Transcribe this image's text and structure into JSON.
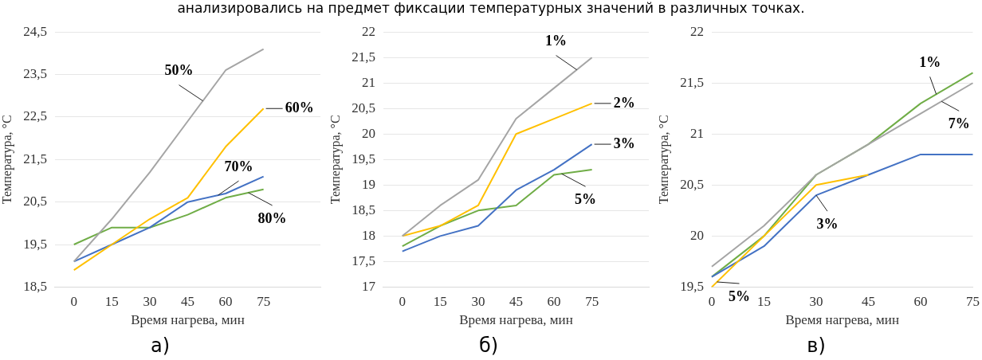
{
  "chart_data": [
    {
      "type": "line",
      "title": "а)",
      "xlabel": "Время нагрева, мин",
      "ylabel": "Температура, °С",
      "annotations": [
        "анализировались на предмет фиксации температурных значений в различных точках."
      ],
      "categories": [
        "0",
        "15",
        "30",
        "45",
        "60",
        "75",
        null
      ],
      "series": [
        {
          "name": "50%",
          "color": "#a5a5a5",
          "values": [
            19.1,
            20.1,
            21.2,
            22.4,
            23.6,
            24.1,
            null
          ]
        },
        {
          "name": "60%",
          "color": "#ffc000",
          "values": [
            18.9,
            19.5,
            20.1,
            20.6,
            21.8,
            22.7,
            null
          ]
        },
        {
          "name": "70%",
          "color": "#4472c4",
          "values": [
            19.1,
            19.5,
            19.9,
            20.5,
            20.7,
            21.1,
            null
          ]
        },
        {
          "name": "80%",
          "color": "#70ad47",
          "values": [
            19.5,
            19.9,
            19.9,
            20.2,
            20.6,
            20.8,
            null
          ]
        }
      ],
      "ylim": [
        18.5,
        24.5
      ],
      "yticks": [
        {
          "value": 18.5,
          "label": "18,5"
        },
        {
          "value": 19.5,
          "label": "19,5"
        },
        {
          "value": 20.5,
          "label": "20,5"
        },
        {
          "value": 21.5,
          "label": "21,5"
        },
        {
          "value": 22.5,
          "label": "22,5"
        },
        {
          "value": 23.5,
          "label": "23,5"
        },
        {
          "value": 24.5,
          "label": "24,5"
        }
      ],
      "grid": "y",
      "legend": false,
      "marker": "none",
      "line_style": "solid"
    },
    {
      "type": "line",
      "title": "б)",
      "xlabel": "Время нагрева, мин",
      "ylabel": "Температура, °С",
      "categories": [
        "0",
        "15",
        "30",
        "45",
        "60",
        "75",
        null
      ],
      "series": [
        {
          "name": "1%",
          "color": "#a5a5a5",
          "values": [
            18.0,
            18.6,
            19.1,
            20.3,
            20.9,
            21.5,
            null
          ]
        },
        {
          "name": "2%",
          "color": "#ffc000",
          "values": [
            18.0,
            18.2,
            18.6,
            20.0,
            20.3,
            20.6,
            null
          ]
        },
        {
          "name": "3%",
          "color": "#4472c4",
          "values": [
            17.7,
            18.0,
            18.2,
            18.9,
            19.3,
            19.8,
            null
          ]
        },
        {
          "name": "5%",
          "color": "#70ad47",
          "values": [
            17.8,
            18.2,
            18.5,
            18.6,
            19.2,
            19.3,
            null
          ]
        }
      ],
      "ylim": [
        17,
        22
      ],
      "yticks": [
        17,
        {
          "value": 17.5,
          "label": "17,5"
        },
        18,
        {
          "value": 18.5,
          "label": "18,5"
        },
        19,
        {
          "value": 19.5,
          "label": "19,5"
        },
        20,
        {
          "value": 20.5,
          "label": "20,5"
        },
        21,
        {
          "value": 21.5,
          "label": "21,5"
        },
        22
      ],
      "grid": "y",
      "legend": false,
      "marker": "none",
      "line_style": "solid"
    },
    {
      "type": "line",
      "title": "в)",
      "xlabel": "Время нагрева, мин",
      "ylabel": "Температура, °С",
      "categories": [
        "0",
        "15",
        "30",
        "45",
        "60",
        "75"
      ],
      "series": [
        {
          "name": "7%",
          "color": "#a5a5a5",
          "values": [
            19.7,
            20.1,
            20.6,
            20.9,
            21.2,
            21.5
          ]
        },
        {
          "name": "5%",
          "color": "#ffc000",
          "values": [
            19.5,
            20.0,
            20.5,
            20.6,
            null,
            null
          ]
        },
        {
          "name": "3%",
          "color": "#4472c4",
          "values": [
            19.6,
            19.9,
            20.4,
            20.6,
            20.8,
            20.8
          ]
        },
        {
          "name": "1%",
          "color": "#70ad47",
          "values": [
            19.6,
            20.0,
            20.6,
            20.9,
            21.3,
            21.6
          ]
        }
      ],
      "ylim": [
        19.5,
        22
      ],
      "yticks": [
        {
          "value": 19.5,
          "label": "19,5"
        },
        20,
        {
          "value": 20.5,
          "label": "20,5"
        },
        21,
        {
          "value": 21.5,
          "label": "21,5"
        },
        22
      ],
      "grid": "y",
      "legend": false,
      "marker": "none",
      "line_style": "solid"
    }
  ]
}
